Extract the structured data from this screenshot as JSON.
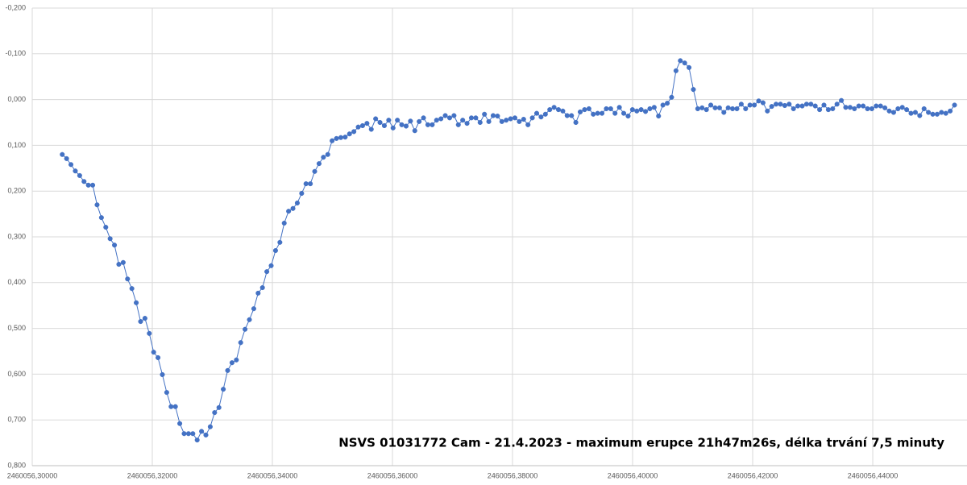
{
  "chart_data": {
    "type": "line",
    "annotation": "NSVS 01031772 Cam - 21.4.2023 - maximum erupce 21h47m26s, délka trvání 7,5 minuty",
    "color": "#4472c4",
    "markers": true,
    "grid": true,
    "yreverse": true,
    "xlim": [
      2460056.3,
      2460056.4557
    ],
    "ylim": [
      -0.2,
      0.8
    ],
    "xticks": [
      {
        "value": 2460056.3,
        "label": "2460056,30000"
      },
      {
        "value": 2460056.32,
        "label": "2460056,32000"
      },
      {
        "value": 2460056.34,
        "label": "2460056,34000"
      },
      {
        "value": 2460056.36,
        "label": "2460056,36000"
      },
      {
        "value": 2460056.38,
        "label": "2460056,38000"
      },
      {
        "value": 2460056.4,
        "label": "2460056,40000"
      },
      {
        "value": 2460056.42,
        "label": "2460056,42000"
      },
      {
        "value": 2460056.44,
        "label": "2460056,44000"
      }
    ],
    "yticks": [
      {
        "value": -0.2,
        "label": "-0,200"
      },
      {
        "value": -0.1,
        "label": "-0,100"
      },
      {
        "value": 0,
        "label": "0,000"
      },
      {
        "value": 0.1,
        "label": "0,100"
      },
      {
        "value": 0.2,
        "label": "0,200"
      },
      {
        "value": 0.3,
        "label": "0,300"
      },
      {
        "value": 0.4,
        "label": "0,400"
      },
      {
        "value": 0.5,
        "label": "0,500"
      },
      {
        "value": 0.6,
        "label": "0,600"
      },
      {
        "value": 0.7,
        "label": "0,700"
      },
      {
        "value": 0.8,
        "label": "0,800"
      }
    ],
    "x": [
      2460056.305,
      2460056.305725,
      2460056.30645,
      2460056.307175,
      2460056.3079,
      2460056.308625,
      2460056.30935,
      2460056.310075,
      2460056.3108,
      2460056.311525,
      2460056.31225,
      2460056.312975,
      2460056.3137,
      2460056.314425,
      2460056.31515,
      2460056.315875,
      2460056.3166,
      2460056.317325,
      2460056.31805,
      2460056.318775,
      2460056.3195,
      2460056.320225,
      2460056.32095,
      2460056.321675,
      2460056.3224,
      2460056.323125,
      2460056.32385,
      2460056.324575,
      2460056.3253,
      2460056.326025,
      2460056.32675,
      2460056.327475,
      2460056.3282,
      2460056.328925,
      2460056.32965,
      2460056.330375,
      2460056.3311,
      2460056.331825,
      2460056.33255,
      2460056.333275,
      2460056.334,
      2460056.334725,
      2460056.33545,
      2460056.336175,
      2460056.3369,
      2460056.337625,
      2460056.33835,
      2460056.339075,
      2460056.3398,
      2460056.340525,
      2460056.34125,
      2460056.341975,
      2460056.3427,
      2460056.343425,
      2460056.34415,
      2460056.344875,
      2460056.3456,
      2460056.346325,
      2460056.34705,
      2460056.347775,
      2460056.3485,
      2460056.349225,
      2460056.34995,
      2460056.350675,
      2460056.3514,
      2460056.352125,
      2460056.35285,
      2460056.353575,
      2460056.3543,
      2460056.355025,
      2460056.35575,
      2460056.356475,
      2460056.3572,
      2460056.357925,
      2460056.35865,
      2460056.359375,
      2460056.3601,
      2460056.360825,
      2460056.36155,
      2460056.362275,
      2460056.363,
      2460056.363725,
      2460056.36445,
      2460056.365175,
      2460056.3659,
      2460056.366625,
      2460056.36735,
      2460056.368075,
      2460056.3688,
      2460056.369525,
      2460056.37025,
      2460056.370975,
      2460056.3717,
      2460056.372425,
      2460056.37315,
      2460056.373875,
      2460056.3746,
      2460056.375325,
      2460056.37605,
      2460056.376775,
      2460056.3775,
      2460056.378225,
      2460056.37895,
      2460056.379675,
      2460056.3804,
      2460056.381125,
      2460056.38185,
      2460056.382575,
      2460056.3833,
      2460056.384025,
      2460056.38475,
      2460056.385475,
      2460056.3862,
      2460056.386925,
      2460056.38765,
      2460056.388375,
      2460056.3891,
      2460056.389825,
      2460056.39055,
      2460056.391275,
      2460056.392,
      2460056.392725,
      2460056.39345,
      2460056.394175,
      2460056.3949,
      2460056.395625,
      2460056.39635,
      2460056.397075,
      2460056.3978,
      2460056.398525,
      2460056.39925,
      2460056.399975,
      2460056.4007,
      2460056.401425,
      2460056.40215,
      2460056.402875,
      2460056.4036,
      2460056.404325,
      2460056.40505,
      2460056.405775,
      2460056.4065,
      2460056.407225,
      2460056.40795,
      2460056.408675,
      2460056.4094,
      2460056.410125,
      2460056.41085,
      2460056.411575,
      2460056.4123,
      2460056.413025,
      2460056.41375,
      2460056.414475,
      2460056.4152,
      2460056.415925,
      2460056.41665,
      2460056.417375,
      2460056.4181,
      2460056.418825,
      2460056.41955,
      2460056.420275,
      2460056.421,
      2460056.421725,
      2460056.42245,
      2460056.423175,
      2460056.4239,
      2460056.424625,
      2460056.42535,
      2460056.426075,
      2460056.4268,
      2460056.427525,
      2460056.42825,
      2460056.428975,
      2460056.4297,
      2460056.430425,
      2460056.43115,
      2460056.431875,
      2460056.4326,
      2460056.433325,
      2460056.43405,
      2460056.434775,
      2460056.4355,
      2460056.436225,
      2460056.43695,
      2460056.437675,
      2460056.4384,
      2460056.439125,
      2460056.43985,
      2460056.440575,
      2460056.4413,
      2460056.442025,
      2460056.44275,
      2460056.443475,
      2460056.4442,
      2460056.444925,
      2460056.44565,
      2460056.446375,
      2460056.4471,
      2460056.447825,
      2460056.44855,
      2460056.449275,
      2460056.45,
      2460056.450725,
      2460056.45145,
      2460056.452175,
      2460056.4529,
      2460056.453625
    ],
    "values": [
      0.12,
      0.129,
      0.142,
      0.156,
      0.166,
      0.179,
      0.187,
      0.187,
      0.23,
      0.258,
      0.279,
      0.304,
      0.318,
      0.36,
      0.356,
      0.392,
      0.413,
      0.444,
      0.485,
      0.478,
      0.511,
      0.552,
      0.564,
      0.601,
      0.64,
      0.671,
      0.671,
      0.708,
      0.73,
      0.73,
      0.73,
      0.744,
      0.725,
      0.733,
      0.715,
      0.684,
      0.673,
      0.633,
      0.592,
      0.575,
      0.569,
      0.531,
      0.502,
      0.481,
      0.457,
      0.423,
      0.411,
      0.376,
      0.363,
      0.33,
      0.312,
      0.27,
      0.244,
      0.238,
      0.226,
      0.205,
      0.184,
      0.184,
      0.157,
      0.14,
      0.126,
      0.12,
      0.09,
      0.085,
      0.083,
      0.082,
      0.075,
      0.07,
      0.06,
      0.057,
      0.052,
      0.065,
      0.042,
      0.05,
      0.057,
      0.045,
      0.062,
      0.045,
      0.055,
      0.058,
      0.047,
      0.068,
      0.048,
      0.04,
      0.055,
      0.055,
      0.045,
      0.042,
      0.035,
      0.04,
      0.035,
      0.055,
      0.045,
      0.052,
      0.04,
      0.04,
      0.05,
      0.032,
      0.048,
      0.035,
      0.036,
      0.048,
      0.045,
      0.042,
      0.04,
      0.048,
      0.043,
      0.055,
      0.04,
      0.03,
      0.038,
      0.032,
      0.022,
      0.017,
      0.022,
      0.025,
      0.035,
      0.035,
      0.05,
      0.027,
      0.022,
      0.02,
      0.032,
      0.03,
      0.03,
      0.02,
      0.02,
      0.03,
      0.017,
      0.03,
      0.036,
      0.022,
      0.025,
      0.022,
      0.026,
      0.02,
      0.017,
      0.036,
      0.012,
      0.008,
      -0.005,
      -0.063,
      -0.085,
      -0.08,
      -0.07,
      -0.022,
      0.02,
      0.018,
      0.022,
      0.012,
      0.018,
      0.018,
      0.028,
      0.018,
      0.02,
      0.02,
      0.01,
      0.02,
      0.012,
      0.012,
      0.003,
      0.007,
      0.025,
      0.015,
      0.01,
      0.01,
      0.013,
      0.01,
      0.02,
      0.014,
      0.014,
      0.01,
      0.01,
      0.014,
      0.022,
      0.012,
      0.022,
      0.02,
      0.01,
      0.002,
      0.017,
      0.017,
      0.02,
      0.014,
      0.014,
      0.02,
      0.02,
      0.014,
      0.014,
      0.018,
      0.025,
      0.028,
      0.02,
      0.017,
      0.022,
      0.03,
      0.028,
      0.035,
      0.02,
      0.028,
      0.032,
      0.032,
      0.028,
      0.03,
      0.025,
      0.012
    ]
  }
}
